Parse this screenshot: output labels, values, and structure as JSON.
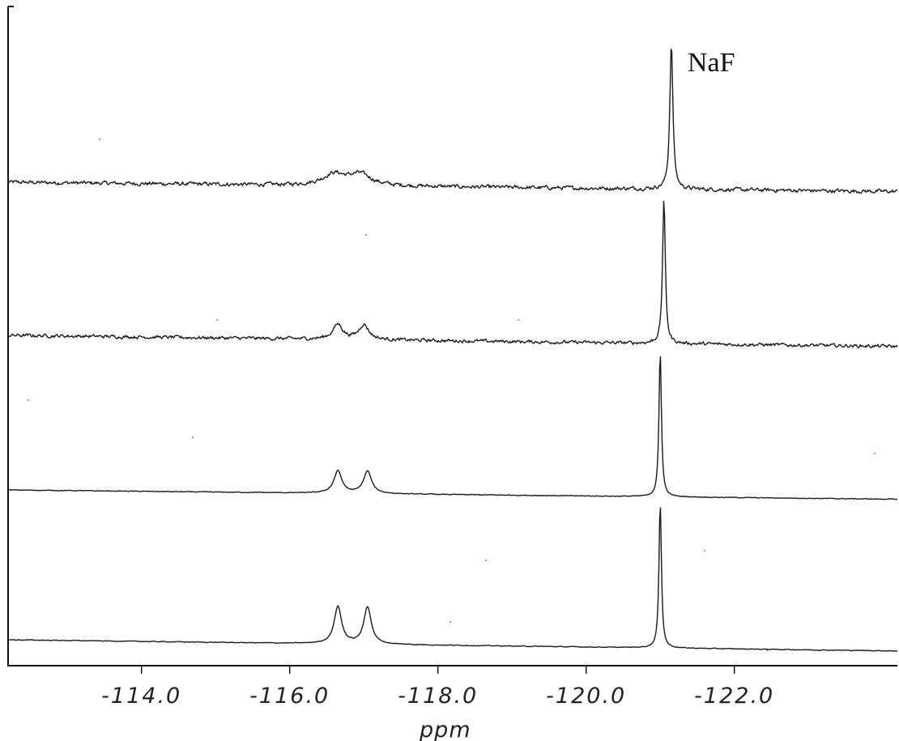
{
  "chart_data": {
    "type": "line",
    "title": "",
    "xlabel": "ppm",
    "ylabel": "",
    "x_reversed": true,
    "xlim": [
      -112.2,
      -124.2
    ],
    "x_ticks": [
      -114.0,
      -116.0,
      -118.0,
      -120.0,
      -122.0
    ],
    "x_tick_labels": [
      "-114.0",
      "-116.0",
      "-118.0",
      "-120.0",
      "-122.0"
    ],
    "grid": false,
    "legend": "none",
    "annotations": [
      {
        "text": "NaF",
        "x": -121.15
      }
    ],
    "series": [
      {
        "peaks": [
          {
            "x": -116.6,
            "height": 0.06,
            "width": 0.18
          },
          {
            "x": -116.95,
            "height": 0.06,
            "width": 0.18
          },
          {
            "x": -121.15,
            "height": 0.78,
            "width": 0.025
          }
        ],
        "baseline_start": 0.0,
        "baseline_end": -0.05,
        "noise": 0.008
      },
      {
        "peaks": [
          {
            "x": -116.65,
            "height": 0.08,
            "width": 0.08
          },
          {
            "x": -117.0,
            "height": 0.08,
            "width": 0.08
          },
          {
            "x": -121.05,
            "height": 0.78,
            "width": 0.022
          }
        ],
        "baseline_start": 0.0,
        "baseline_end": -0.06,
        "noise": 0.007
      },
      {
        "peaks": [
          {
            "x": -116.65,
            "height": 0.12,
            "width": 0.065
          },
          {
            "x": -117.05,
            "height": 0.12,
            "width": 0.065
          },
          {
            "x": -121.0,
            "height": 0.78,
            "width": 0.02
          }
        ],
        "baseline_start": 0.0,
        "baseline_end": -0.05,
        "noise": 0.0015
      },
      {
        "peaks": [
          {
            "x": -116.65,
            "height": 0.2,
            "width": 0.06
          },
          {
            "x": -117.05,
            "height": 0.2,
            "width": 0.06
          },
          {
            "x": -121.0,
            "height": 0.78,
            "width": 0.02
          }
        ],
        "baseline_start": 0.0,
        "baseline_end": -0.06,
        "noise": 0.0015
      }
    ]
  }
}
